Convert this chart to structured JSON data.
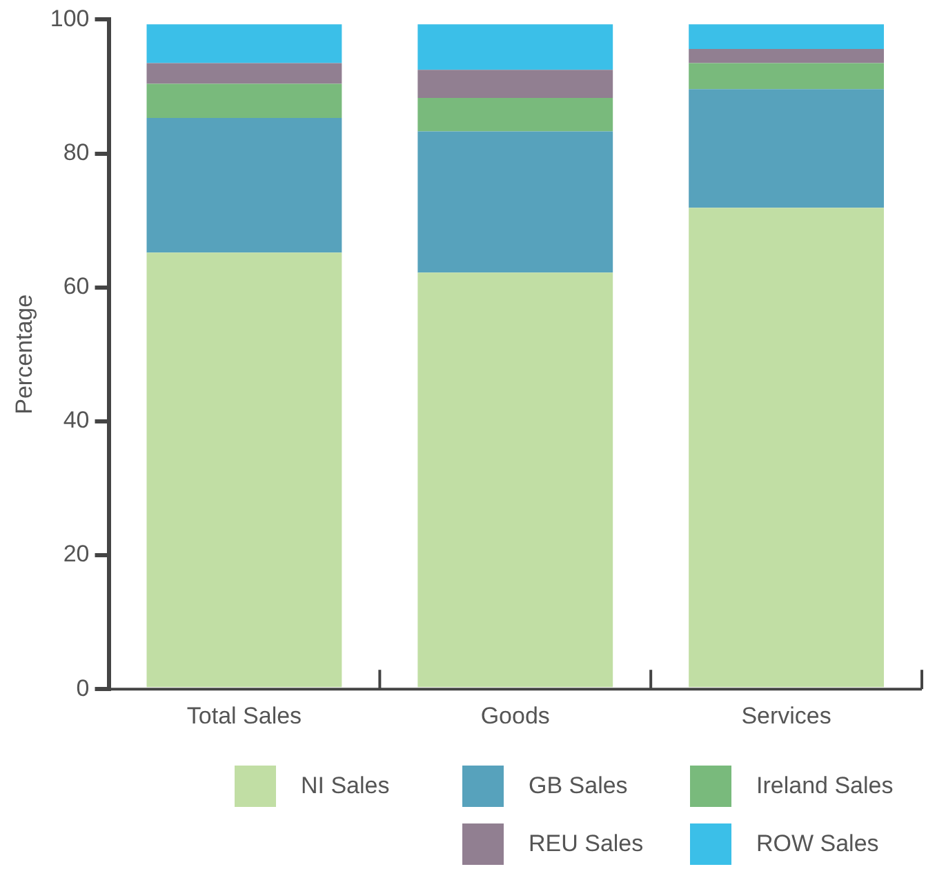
{
  "chart_data": {
    "type": "bar",
    "stacked": true,
    "ylabel": "Percentage",
    "categories": [
      "Total Sales",
      "Goods",
      "Services"
    ],
    "series": [
      {
        "name": "NI Sales",
        "color": "#c1dea4",
        "values": [
          65.2,
          62.2,
          71.9
        ]
      },
      {
        "name": "GB Sales",
        "color": "#57a2bc",
        "values": [
          20.1,
          21.1,
          17.7
        ]
      },
      {
        "name": "Ireland Sales",
        "color": "#79ba7c",
        "values": [
          5.1,
          5.0,
          3.9
        ]
      },
      {
        "name": "REU Sales",
        "color": "#917f91",
        "values": [
          3.1,
          4.2,
          2.1
        ]
      },
      {
        "name": "ROW Sales",
        "color": "#3bbfe8",
        "values": [
          5.8,
          6.8,
          3.7
        ]
      }
    ],
    "ylim": [
      0,
      100
    ],
    "yticks": [
      0,
      20,
      40,
      60,
      80,
      100
    ],
    "grid": false,
    "legend": "bottom"
  }
}
